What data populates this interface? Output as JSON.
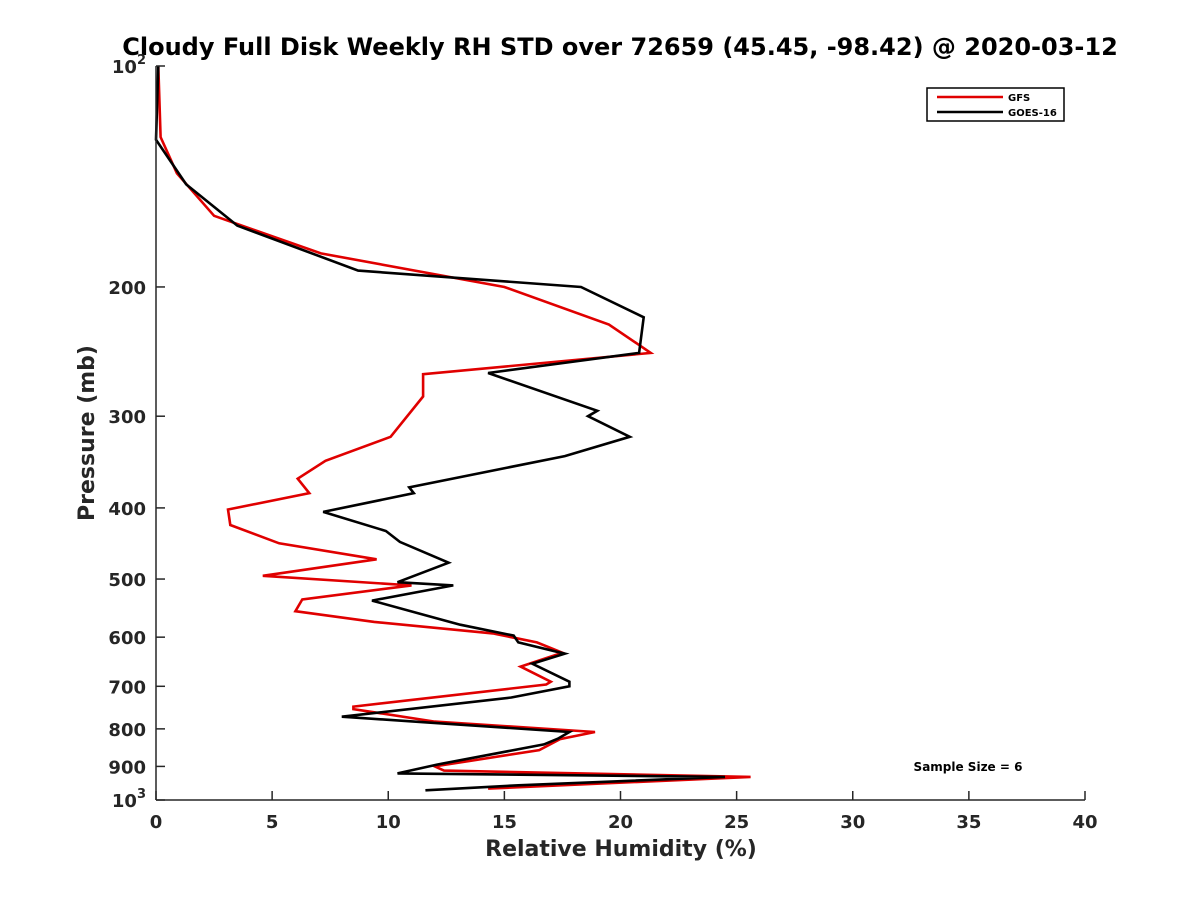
{
  "chart_data": {
    "type": "line",
    "title": "Cloudy Full Disk Weekly RH STD over 72659 (45.45, -98.42) @ 2020-03-12",
    "xlabel": "Relative Humidity (%)",
    "ylabel": "Pressure (mb)",
    "xlim": [
      0,
      40
    ],
    "ylim": [
      100,
      1000
    ],
    "yscale": "log",
    "y_reversed": true,
    "grid": false,
    "legend_position": "top-right",
    "x_ticks": [
      "0",
      "5",
      "10",
      "15",
      "20",
      "25",
      "30",
      "35",
      "40"
    ],
    "y_ticks": [
      {
        "value": 100,
        "base": "10",
        "exp": "2"
      },
      {
        "value": 200,
        "label": "200"
      },
      {
        "value": 300,
        "label": "300"
      },
      {
        "value": 400,
        "label": "400"
      },
      {
        "value": 500,
        "label": "500"
      },
      {
        "value": 600,
        "label": "600"
      },
      {
        "value": 700,
        "label": "700"
      },
      {
        "value": 800,
        "label": "800"
      },
      {
        "value": 900,
        "label": "900"
      },
      {
        "value": 1000,
        "base": "10",
        "exp": "3"
      }
    ],
    "annotation": "Sample Size = 6",
    "series": [
      {
        "name": "GFS",
        "color": "#e00000",
        "points": [
          [
            0.1,
            100
          ],
          [
            0.2,
            125
          ],
          [
            0.9,
            140
          ],
          [
            2.5,
            160
          ],
          [
            7.1,
            180
          ],
          [
            15.0,
            200
          ],
          [
            19.5,
            225
          ],
          [
            21.3,
            246
          ],
          [
            11.5,
            263
          ],
          [
            11.5,
            282
          ],
          [
            10.1,
            320
          ],
          [
            7.3,
            345
          ],
          [
            6.1,
            365
          ],
          [
            6.6,
            382
          ],
          [
            3.1,
            402
          ],
          [
            3.2,
            422
          ],
          [
            5.3,
            447
          ],
          [
            9.5,
            470
          ],
          [
            4.6,
            495
          ],
          [
            11.0,
            510
          ],
          [
            6.3,
            533
          ],
          [
            6.0,
            553
          ],
          [
            9.4,
            572
          ],
          [
            14.5,
            593
          ],
          [
            16.4,
            610
          ],
          [
            17.5,
            630
          ],
          [
            15.7,
            658
          ],
          [
            17.0,
            690
          ],
          [
            16.8,
            696
          ],
          [
            8.5,
            746
          ],
          [
            8.5,
            752
          ],
          [
            12.0,
            782
          ],
          [
            18.9,
            808
          ],
          [
            17.4,
            826
          ],
          [
            16.5,
            855
          ],
          [
            12.0,
            900
          ],
          [
            12.4,
            912
          ],
          [
            25.6,
            930
          ],
          [
            14.3,
            965
          ]
        ]
      },
      {
        "name": "GOES-16",
        "color": "#000000",
        "points": [
          [
            0.1,
            100
          ],
          [
            0.0,
            126
          ],
          [
            1.3,
            145
          ],
          [
            3.5,
            165
          ],
          [
            8.7,
            190
          ],
          [
            18.3,
            200
          ],
          [
            21.0,
            220
          ],
          [
            20.8,
            246
          ],
          [
            14.3,
            262
          ],
          [
            19.0,
            295
          ],
          [
            18.6,
            300
          ],
          [
            20.4,
            320
          ],
          [
            17.6,
            340
          ],
          [
            10.9,
            375
          ],
          [
            11.1,
            382
          ],
          [
            7.2,
            405
          ],
          [
            9.9,
            430
          ],
          [
            10.5,
            445
          ],
          [
            12.6,
            475
          ],
          [
            10.4,
            505
          ],
          [
            12.8,
            510
          ],
          [
            9.3,
            535
          ],
          [
            11.6,
            560
          ],
          [
            13.1,
            577
          ],
          [
            15.4,
            597
          ],
          [
            15.6,
            610
          ],
          [
            17.6,
            632
          ],
          [
            16.2,
            652
          ],
          [
            17.8,
            690
          ],
          [
            17.8,
            700
          ],
          [
            15.3,
            725
          ],
          [
            8.0,
            770
          ],
          [
            11.9,
            785
          ],
          [
            17.8,
            808
          ],
          [
            17.3,
            825
          ],
          [
            16.7,
            840
          ],
          [
            12.1,
            895
          ],
          [
            10.4,
            920
          ],
          [
            24.5,
            930
          ],
          [
            15.6,
            955
          ],
          [
            11.6,
            970
          ]
        ]
      }
    ]
  }
}
